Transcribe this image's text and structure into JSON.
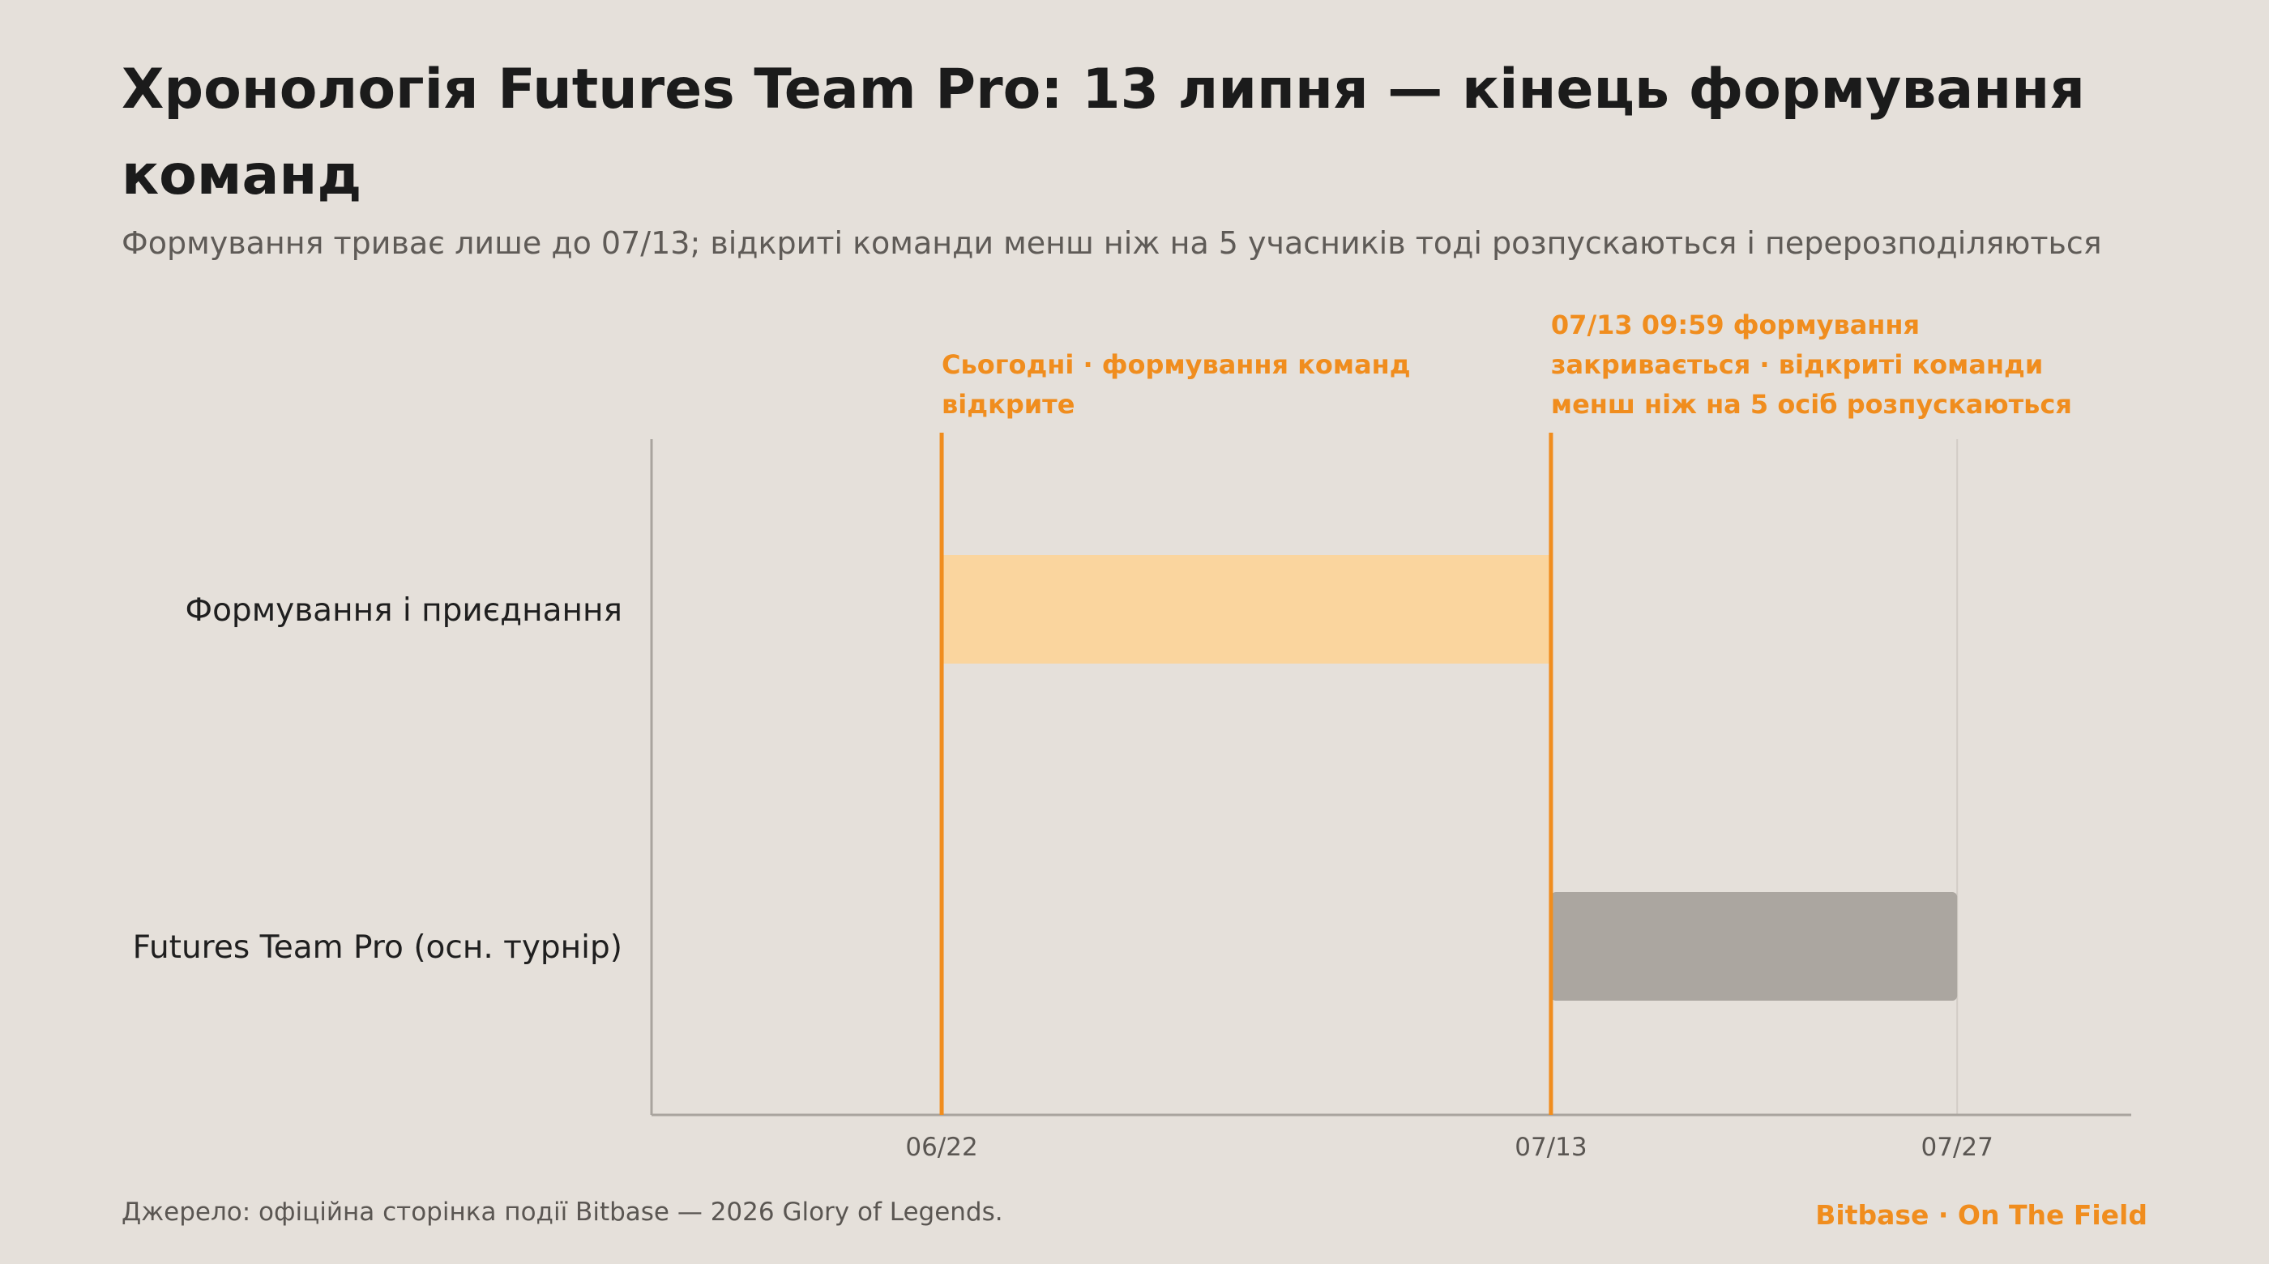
{
  "header": {
    "title": "Хронологія Futures Team Pro: 13 липня — кінець формування команд",
    "subtitle": "Формування триває лише до 07/13; відкриті команди менш ніж на 5 учасників тоді розпускаються і перерозподіляються"
  },
  "footer": {
    "source": "Джерело: офіційна сторінка події Bitbase — 2026 Glory of Legends.",
    "brand": "Bitbase · On The Field"
  },
  "colors": {
    "background": "#e5e0da",
    "accent": "#f08d1e",
    "formation_bar": "#fad59e",
    "tournament_bar": "#aba6a0",
    "axis": "#a9a49e",
    "grid": "#d2ccc6"
  },
  "chart_data": {
    "type": "gantt",
    "title": "Хронологія Futures Team Pro: 13 липня — кінець формування команд",
    "subtitle": "Формування триває лише до 07/13; відкриті команди менш ніж на 5 учасників тоді розпускаються і перерозподіляються",
    "x_axis": {
      "type": "date",
      "range": [
        "06/12",
        "08/02"
      ],
      "ticks": [
        "06/22",
        "07/13",
        "07/27"
      ]
    },
    "rows": [
      {
        "label": "Формування і приєднання",
        "start": "06/22",
        "end": "07/13",
        "color": "#fad59e"
      },
      {
        "label": "Futures Team Pro (осн. турнір)",
        "start": "07/13",
        "end": "07/27",
        "color": "#aba6a0"
      }
    ],
    "markers": [
      {
        "date": "06/22",
        "label_lines": [
          "Сьогодні · формування команд",
          "відкрите"
        ]
      },
      {
        "date": "07/13",
        "label_lines": [
          "07/13 09:59 формування",
          "закривається · відкриті команди",
          "менш ніж на 5 осіб розпускаються"
        ]
      }
    ],
    "gridlines": [
      "07/27"
    ]
  }
}
